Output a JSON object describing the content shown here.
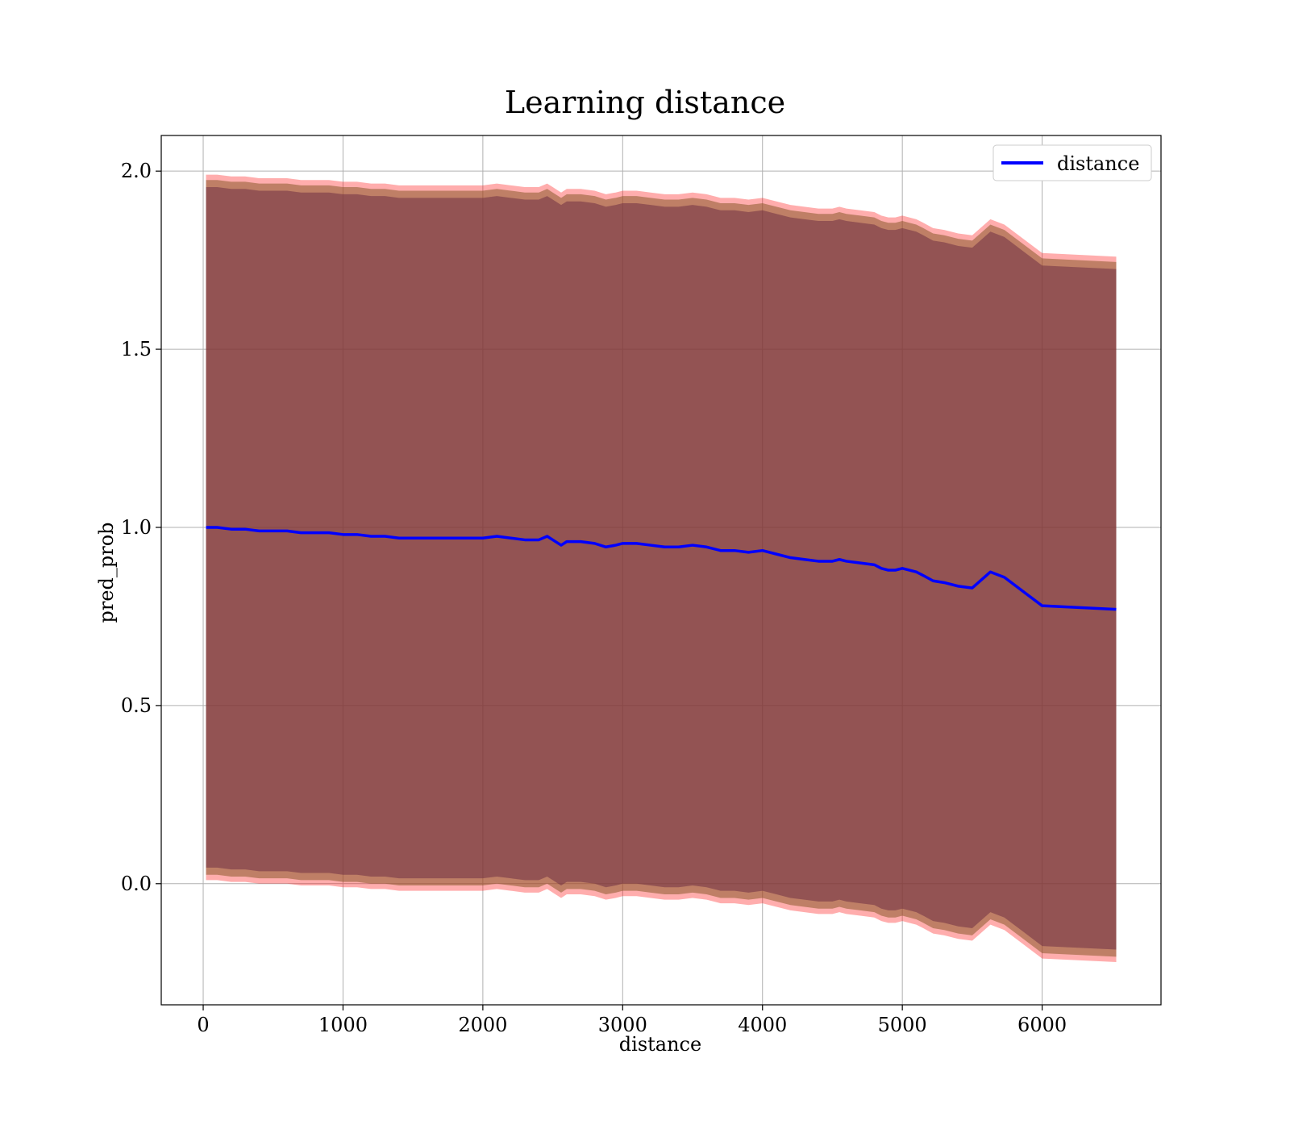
{
  "chart_data": {
    "type": "line",
    "title": "Learning distance",
    "xlabel": "distance",
    "ylabel": "pred_prob",
    "xlim": [
      -300,
      6850
    ],
    "ylim": [
      -0.34,
      2.1
    ],
    "xticks": [
      0,
      1000,
      2000,
      3000,
      4000,
      5000,
      6000
    ],
    "xtick_labels": [
      "0",
      "1000",
      "2000",
      "3000",
      "4000",
      "5000",
      "6000"
    ],
    "yticks": [
      0.0,
      0.5,
      1.0,
      1.5,
      2.0
    ],
    "ytick_labels": [
      "0.0",
      "0.5",
      "1.0",
      "1.5",
      "2.0"
    ],
    "grid": true,
    "legend": {
      "position": "top-right",
      "entries": [
        "distance"
      ]
    },
    "colors": {
      "line": "#0000ff",
      "band_outer": "#ff0000",
      "band_mid": "#8b5a2b",
      "band_inner": "#6f2f43",
      "grid": "#b0b0b0"
    },
    "series": [
      {
        "name": "distance",
        "x": [
          20,
          100,
          200,
          300,
          400,
          500,
          600,
          700,
          800,
          900,
          1000,
          1100,
          1200,
          1300,
          1400,
          1500,
          1600,
          1700,
          1800,
          1900,
          2000,
          2100,
          2200,
          2300,
          2400,
          2460,
          2500,
          2560,
          2600,
          2700,
          2800,
          2880,
          2950,
          3000,
          3100,
          3200,
          3300,
          3400,
          3500,
          3600,
          3700,
          3800,
          3900,
          4000,
          4100,
          4200,
          4300,
          4400,
          4500,
          4550,
          4600,
          4700,
          4800,
          4850,
          4900,
          4950,
          5000,
          5100,
          5150,
          5220,
          5300,
          5400,
          5500,
          5630,
          5730,
          6000,
          6530
        ],
        "y": [
          1.0,
          1.0,
          0.995,
          0.995,
          0.99,
          0.99,
          0.99,
          0.985,
          0.985,
          0.985,
          0.98,
          0.98,
          0.975,
          0.975,
          0.97,
          0.97,
          0.97,
          0.97,
          0.97,
          0.97,
          0.97,
          0.975,
          0.97,
          0.965,
          0.965,
          0.975,
          0.965,
          0.95,
          0.96,
          0.96,
          0.955,
          0.945,
          0.95,
          0.955,
          0.955,
          0.95,
          0.945,
          0.945,
          0.95,
          0.945,
          0.935,
          0.935,
          0.93,
          0.935,
          0.925,
          0.915,
          0.91,
          0.905,
          0.905,
          0.91,
          0.905,
          0.9,
          0.895,
          0.885,
          0.88,
          0.88,
          0.885,
          0.875,
          0.865,
          0.85,
          0.845,
          0.835,
          0.83,
          0.875,
          0.86,
          0.78,
          0.77
        ]
      }
    ],
    "bands": [
      {
        "name": "band-outer",
        "offset_upper": 0.99,
        "offset_lower": 0.99
      },
      {
        "name": "band-mid",
        "offset_upper": 0.975,
        "offset_lower": 0.975
      },
      {
        "name": "band-inner",
        "offset_upper": 0.955,
        "offset_lower": 0.955
      }
    ]
  }
}
